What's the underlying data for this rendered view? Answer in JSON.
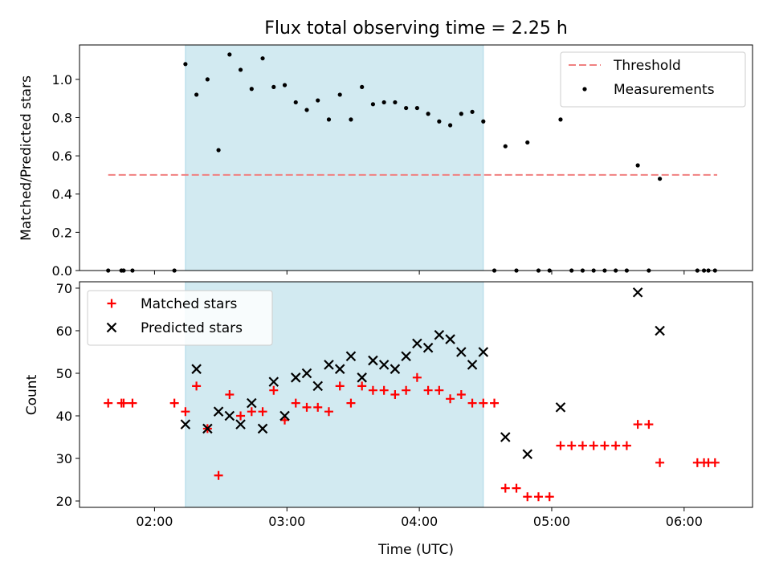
{
  "chart_data": {
    "type": "scatter",
    "title": "Flux total observing time = 2.25 h",
    "xlabel": "Time (UTC)",
    "xlim": [
      "01:26",
      "06:31"
    ],
    "x_ticks": [
      "02:00",
      "03:00",
      "04:00",
      "05:00",
      "06:00"
    ],
    "shaded_region": {
      "start": "02:14",
      "end": "04:29",
      "color": "#add8e6"
    },
    "panels": [
      {
        "ylabel": "Matched/Predicted stars",
        "ylim": [
          0,
          1.18
        ],
        "y_ticks": [
          "0.0",
          "0.2",
          "0.4",
          "0.6",
          "0.8",
          "1.0"
        ],
        "legend_position": "top-right",
        "threshold": {
          "name": "Threshold",
          "value": 0.5,
          "x_start": "01:39",
          "x_end": "06:15",
          "color": "#f08080"
        },
        "series": [
          {
            "name": "Measurements",
            "marker": "dot",
            "color": "#000000",
            "x": [
              "01:39",
              "01:45",
              "01:46",
              "01:50",
              "02:09",
              "02:14",
              "02:19",
              "02:24",
              "02:29",
              "02:34",
              "02:39",
              "02:44",
              "02:49",
              "02:54",
              "02:59",
              "03:04",
              "03:09",
              "03:14",
              "03:19",
              "03:24",
              "03:29",
              "03:34",
              "03:39",
              "03:44",
              "03:49",
              "03:54",
              "03:59",
              "04:04",
              "04:09",
              "04:14",
              "04:19",
              "04:24",
              "04:29",
              "04:34",
              "04:39",
              "04:44",
              "04:49",
              "04:54",
              "04:59",
              "05:04",
              "05:09",
              "05:14",
              "05:19",
              "05:24",
              "05:29",
              "05:34",
              "05:39",
              "05:44",
              "05:49",
              "06:06",
              "06:09",
              "06:11",
              "06:14"
            ],
            "y": [
              0,
              0,
              0,
              0,
              0,
              1.08,
              0.92,
              1.0,
              0.63,
              1.13,
              1.05,
              0.95,
              1.11,
              0.96,
              0.97,
              0.88,
              0.84,
              0.89,
              0.79,
              0.92,
              0.79,
              0.96,
              0.87,
              0.88,
              0.88,
              0.85,
              0.85,
              0.82,
              0.78,
              0.76,
              0.82,
              0.83,
              0.78,
              0,
              0.65,
              0,
              0.67,
              0,
              0,
              0.79,
              0,
              0,
              0,
              0,
              0,
              0,
              0.55,
              0,
              0.48,
              0,
              0,
              0,
              0
            ]
          }
        ]
      },
      {
        "ylabel": "Count",
        "ylim": [
          18.5,
          71.5
        ],
        "y_ticks": [
          "20",
          "30",
          "40",
          "50",
          "60",
          "70"
        ],
        "legend_position": "top-left",
        "series": [
          {
            "name": "Matched stars",
            "marker": "plus",
            "color": "#ff0000",
            "x": [
              "01:39",
              "01:45",
              "01:46",
              "01:50",
              "02:09",
              "02:14",
              "02:19",
              "02:24",
              "02:29",
              "02:34",
              "02:39",
              "02:44",
              "02:49",
              "02:54",
              "02:59",
              "03:04",
              "03:09",
              "03:14",
              "03:19",
              "03:24",
              "03:29",
              "03:34",
              "03:39",
              "03:44",
              "03:49",
              "03:54",
              "03:59",
              "04:04",
              "04:09",
              "04:14",
              "04:19",
              "04:24",
              "04:29",
              "04:34",
              "04:39",
              "04:44",
              "04:49",
              "04:54",
              "04:59",
              "05:04",
              "05:09",
              "05:14",
              "05:19",
              "05:24",
              "05:29",
              "05:34",
              "05:39",
              "05:44",
              "05:49",
              "06:06",
              "06:09",
              "06:11",
              "06:14"
            ],
            "y": [
              43,
              43,
              43,
              43,
              43,
              41,
              47,
              37,
              26,
              45,
              40,
              41,
              41,
              46,
              39,
              43,
              42,
              42,
              41,
              47,
              43,
              47,
              46,
              46,
              45,
              46,
              49,
              46,
              46,
              44,
              45,
              43,
              43,
              43,
              23,
              23,
              21,
              21,
              21,
              33,
              33,
              33,
              33,
              33,
              33,
              33,
              38,
              38,
              29,
              29,
              29,
              29,
              29
            ]
          },
          {
            "name": "Predicted stars",
            "marker": "x",
            "color": "#000000",
            "x": [
              "02:14",
              "02:19",
              "02:24",
              "02:29",
              "02:34",
              "02:39",
              "02:44",
              "02:49",
              "02:54",
              "02:59",
              "03:04",
              "03:09",
              "03:14",
              "03:19",
              "03:24",
              "03:29",
              "03:34",
              "03:39",
              "03:44",
              "03:49",
              "03:54",
              "03:59",
              "04:04",
              "04:09",
              "04:14",
              "04:19",
              "04:24",
              "04:29",
              "04:39",
              "04:49",
              "05:04",
              "05:39",
              "05:49"
            ],
            "y": [
              38,
              51,
              37,
              41,
              40,
              38,
              43,
              37,
              48,
              40,
              49,
              50,
              47,
              52,
              51,
              54,
              49,
              53,
              52,
              51,
              54,
              57,
              56,
              59,
              58,
              55,
              52,
              55,
              35,
              31,
              42,
              69,
              60
            ]
          }
        ]
      }
    ]
  }
}
